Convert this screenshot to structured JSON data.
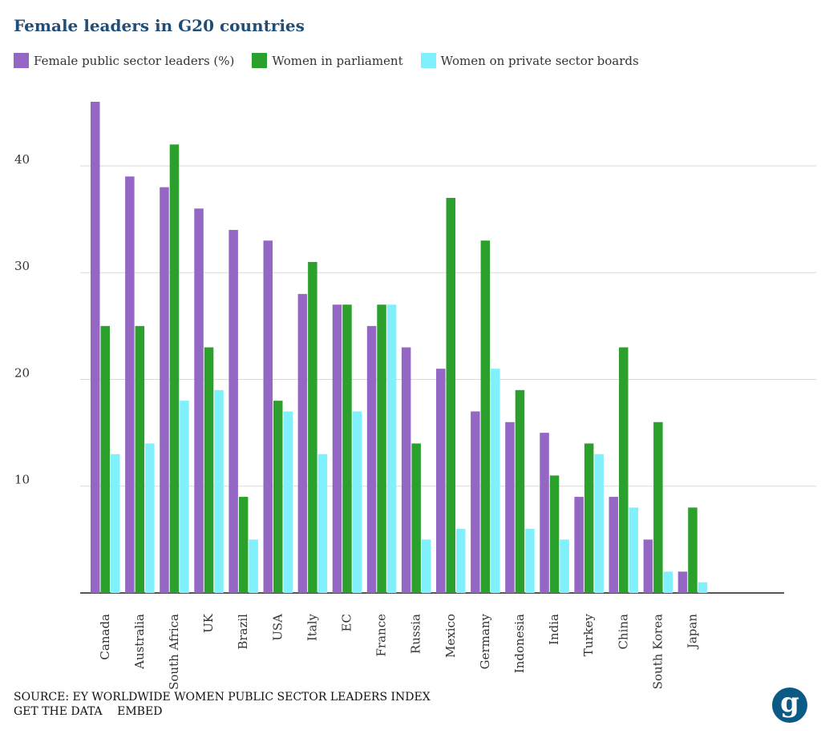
{
  "chart_data": {
    "type": "bar",
    "title": "Female leaders in G20 countries",
    "categories": [
      "Canada",
      "Australia",
      "South Africa",
      "UK",
      "Brazil",
      "USA",
      "Italy",
      "EC",
      "France",
      "Russia",
      "Mexico",
      "Germany",
      "Indonesia",
      "India",
      "Turkey",
      "China",
      "South Korea",
      "Japan"
    ],
    "series": [
      {
        "name": "Female public sector leaders (%)",
        "color": "#9467c4",
        "values": [
          46,
          39,
          38,
          36,
          34,
          33,
          28,
          27,
          25,
          23,
          21,
          17,
          16,
          15,
          9,
          9,
          5,
          2
        ]
      },
      {
        "name": "Women in parliament",
        "color": "#2ca02c",
        "values": [
          25,
          25,
          42,
          23,
          9,
          18,
          31,
          27,
          27,
          14,
          37,
          33,
          19,
          11,
          14,
          23,
          16,
          8
        ]
      },
      {
        "name": "Women on private sector boards",
        "color": "#7ff0fc",
        "values": [
          13,
          14,
          18,
          19,
          5,
          17,
          13,
          17,
          27,
          5,
          6,
          21,
          6,
          5,
          13,
          8,
          2,
          1
        ]
      }
    ],
    "yticks": [
      10,
      20,
      30,
      40
    ],
    "ylim": [
      0,
      46
    ],
    "grid": true,
    "legend_position": "top-left"
  },
  "footer": {
    "source": "SOURCE: EY WORLDWIDE WOMEN PUBLIC SECTOR LEADERS INDEX",
    "get_data": "GET THE DATA",
    "embed": "EMBED"
  },
  "logo": {
    "letter": "g"
  }
}
